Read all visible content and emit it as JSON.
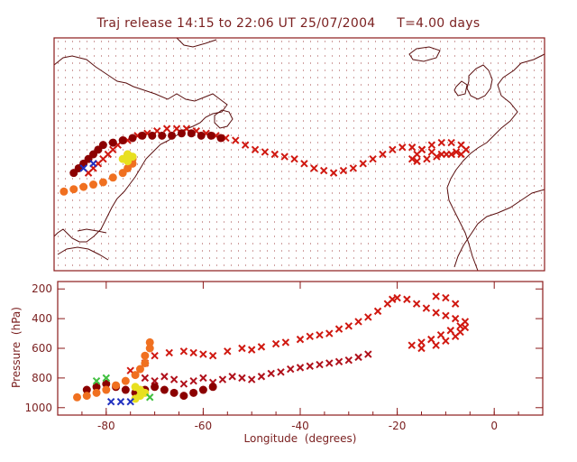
{
  "title": "Traj release 14:15 to 22:06 UT 25/07/2004     T=4.00 days",
  "colors": {
    "frame": "#8b1a1a",
    "coast": "#5a0f0f",
    "dots": "#a04040",
    "traj_palette": [
      "#8b0000",
      "#b0101a",
      "#d01810",
      "#e83a10",
      "#f07020",
      "#ffb000",
      "#e8e020",
      "#40c040",
      "#2030c0"
    ]
  },
  "chart_data": [
    {
      "type": "map",
      "title": "Traj release 14:15 to 22:06 UT 25/07/2004     T=4.00 days",
      "xlim": [
        -90,
        10
      ],
      "ylim": [
        20,
        70
      ],
      "projection": "lon-lat",
      "background": "dotted grid",
      "series": [
        {
          "marker": "x",
          "color": "#d01810",
          "points": [
            [
              -83,
              41
            ],
            [
              -82,
              42
            ],
            [
              -81,
              43
            ],
            [
              -80,
              44
            ],
            [
              -79,
              45
            ],
            [
              -78,
              46
            ],
            [
              -77,
              47
            ],
            [
              -75,
              48
            ],
            [
              -73,
              49
            ],
            [
              -71,
              49.5
            ],
            [
              -69,
              50
            ],
            [
              -67,
              50.5
            ],
            [
              -65,
              50.5
            ],
            [
              -63,
              50.5
            ],
            [
              -61,
              50
            ],
            [
              -59,
              49.5
            ],
            [
              -57,
              49
            ],
            [
              -55,
              48.5
            ],
            [
              -53,
              48
            ],
            [
              -51,
              47
            ],
            [
              -49,
              46
            ],
            [
              -47,
              45.5
            ],
            [
              -45,
              45
            ],
            [
              -43,
              44.5
            ],
            [
              -41,
              44
            ],
            [
              -39,
              43
            ],
            [
              -37,
              42
            ],
            [
              -35,
              41.5
            ],
            [
              -33,
              41
            ],
            [
              -31,
              41.5
            ],
            [
              -29,
              42
            ],
            [
              -27,
              43
            ],
            [
              -25,
              44
            ],
            [
              -23,
              45
            ],
            [
              -21,
              46
            ],
            [
              -19,
              46.5
            ],
            [
              -17,
              46.5
            ],
            [
              -15,
              46
            ],
            [
              -13,
              45.5
            ],
            [
              -11,
              45
            ],
            [
              -9,
              45
            ],
            [
              -7,
              45
            ],
            [
              -6,
              46
            ],
            [
              -7,
              47
            ],
            [
              -9,
              47.5
            ],
            [
              -11,
              47.5
            ],
            [
              -13,
              47
            ],
            [
              -15,
              46
            ],
            [
              -16,
              45
            ],
            [
              -17,
              44
            ],
            [
              -16,
              43.5
            ],
            [
              -14,
              44
            ],
            [
              -12,
              44.5
            ],
            [
              -10,
              45
            ],
            [
              -8,
              45.5
            ],
            [
              -6,
              46
            ]
          ]
        },
        {
          "marker": "cluster",
          "color": "#8b0000",
          "points": [
            [
              -86,
              41
            ],
            [
              -85,
              42
            ],
            [
              -84,
              43
            ],
            [
              -83,
              44
            ],
            [
              -82,
              45
            ],
            [
              -81,
              46
            ],
            [
              -80,
              47
            ],
            [
              -78,
              47.5
            ],
            [
              -76,
              48
            ],
            [
              -74,
              48.5
            ],
            [
              -72,
              49
            ],
            [
              -70,
              49
            ],
            [
              -68,
              49
            ],
            [
              -66,
              49
            ],
            [
              -64,
              49.5
            ],
            [
              -62,
              49.5
            ],
            [
              -60,
              49
            ],
            [
              -58,
              49
            ],
            [
              -56,
              48.5
            ]
          ]
        },
        {
          "marker": "cluster",
          "color": "#f07020",
          "points": [
            [
              -88,
              37
            ],
            [
              -86,
              37.5
            ],
            [
              -84,
              38
            ],
            [
              -82,
              38.5
            ],
            [
              -80,
              39
            ],
            [
              -78,
              40
            ],
            [
              -76,
              41
            ],
            [
              -75,
              42
            ],
            [
              -74,
              43
            ],
            [
              -74,
              44
            ],
            [
              -75,
              45
            ]
          ]
        },
        {
          "marker": "cluster",
          "color": "#e8e020",
          "points": [
            [
              -76,
              44
            ],
            [
              -75,
              45
            ],
            [
              -74,
              44.5
            ],
            [
              -75,
              43.5
            ]
          ]
        },
        {
          "marker": "x",
          "color": "#2030c0",
          "points": [
            [
              -84,
              42
            ],
            [
              -82,
              43
            ]
          ]
        }
      ]
    },
    {
      "type": "scatter",
      "xlabel": "Longitude  (degrees)",
      "ylabel": "Pressure  (hPa)",
      "xlim": [
        -90,
        10
      ],
      "ylim": [
        1050,
        150
      ],
      "xticks": [
        -80,
        -60,
        -40,
        -20,
        0
      ],
      "yticks": [
        200,
        400,
        600,
        800,
        1000
      ],
      "series": [
        {
          "marker": "x",
          "color": "#d01810",
          "points": [
            [
              -75,
              750
            ],
            [
              -72,
              700
            ],
            [
              -70,
              650
            ],
            [
              -67,
              630
            ],
            [
              -64,
              620
            ],
            [
              -62,
              630
            ],
            [
              -60,
              640
            ],
            [
              -58,
              650
            ],
            [
              -55,
              620
            ],
            [
              -52,
              600
            ],
            [
              -50,
              610
            ],
            [
              -48,
              590
            ],
            [
              -45,
              570
            ],
            [
              -43,
              560
            ],
            [
              -40,
              540
            ],
            [
              -38,
              520
            ],
            [
              -36,
              510
            ],
            [
              -34,
              500
            ],
            [
              -32,
              470
            ],
            [
              -30,
              450
            ],
            [
              -28,
              420
            ],
            [
              -26,
              390
            ],
            [
              -24,
              350
            ],
            [
              -22,
              300
            ],
            [
              -21,
              270
            ],
            [
              -20,
              260
            ],
            [
              -18,
              270
            ],
            [
              -16,
              300
            ],
            [
              -14,
              330
            ],
            [
              -12,
              360
            ],
            [
              -10,
              380
            ],
            [
              -8,
              400
            ],
            [
              -6,
              420
            ],
            [
              -7,
              450
            ],
            [
              -9,
              480
            ],
            [
              -11,
              510
            ],
            [
              -13,
              540
            ],
            [
              -15,
              560
            ],
            [
              -17,
              580
            ],
            [
              -15,
              600
            ],
            [
              -12,
              580
            ],
            [
              -10,
              550
            ],
            [
              -8,
              520
            ],
            [
              -7,
              490
            ],
            [
              -6,
              460
            ],
            [
              -8,
              300
            ],
            [
              -10,
              260
            ],
            [
              -12,
              250
            ]
          ]
        },
        {
          "marker": "x",
          "color": "#b0101a",
          "points": [
            [
              -72,
              800
            ],
            [
              -70,
              820
            ],
            [
              -68,
              790
            ],
            [
              -66,
              810
            ],
            [
              -64,
              840
            ],
            [
              -62,
              820
            ],
            [
              -60,
              800
            ],
            [
              -58,
              830
            ],
            [
              -56,
              810
            ],
            [
              -54,
              790
            ],
            [
              -52,
              800
            ],
            [
              -50,
              810
            ],
            [
              -48,
              790
            ],
            [
              -46,
              770
            ],
            [
              -44,
              760
            ],
            [
              -42,
              740
            ],
            [
              -40,
              730
            ],
            [
              -38,
              720
            ],
            [
              -36,
              710
            ],
            [
              -34,
              700
            ],
            [
              -32,
              690
            ],
            [
              -30,
              680
            ],
            [
              -28,
              660
            ],
            [
              -26,
              640
            ]
          ]
        },
        {
          "marker": "cluster",
          "color": "#8b0000",
          "points": [
            [
              -84,
              880
            ],
            [
              -82,
              860
            ],
            [
              -80,
              840
            ],
            [
              -78,
              860
            ],
            [
              -76,
              880
            ],
            [
              -74,
              900
            ],
            [
              -72,
              880
            ],
            [
              -70,
              860
            ],
            [
              -68,
              880
            ],
            [
              -66,
              900
            ],
            [
              -64,
              920
            ],
            [
              -62,
              900
            ],
            [
              -60,
              880
            ],
            [
              -58,
              860
            ]
          ]
        },
        {
          "marker": "cluster",
          "color": "#f07020",
          "points": [
            [
              -86,
              930
            ],
            [
              -84,
              920
            ],
            [
              -82,
              900
            ],
            [
              -80,
              880
            ],
            [
              -78,
              850
            ],
            [
              -76,
              820
            ],
            [
              -74,
              780
            ],
            [
              -73,
              740
            ],
            [
              -72,
              700
            ],
            [
              -72,
              650
            ],
            [
              -71,
              600
            ],
            [
              -71,
              560
            ]
          ]
        },
        {
          "marker": "cluster",
          "color": "#e8e020",
          "points": [
            [
              -74,
              860
            ],
            [
              -73,
              880
            ],
            [
              -72,
              900
            ],
            [
              -73,
              920
            ],
            [
              -74,
              940
            ]
          ]
        },
        {
          "marker": "x",
          "color": "#40c040",
          "points": [
            [
              -82,
              820
            ],
            [
              -80,
              800
            ],
            [
              -71,
              930
            ]
          ]
        },
        {
          "marker": "x",
          "color": "#2030c0",
          "points": [
            [
              -79,
              960
            ],
            [
              -77,
              960
            ],
            [
              -75,
              960
            ]
          ]
        }
      ]
    }
  ]
}
